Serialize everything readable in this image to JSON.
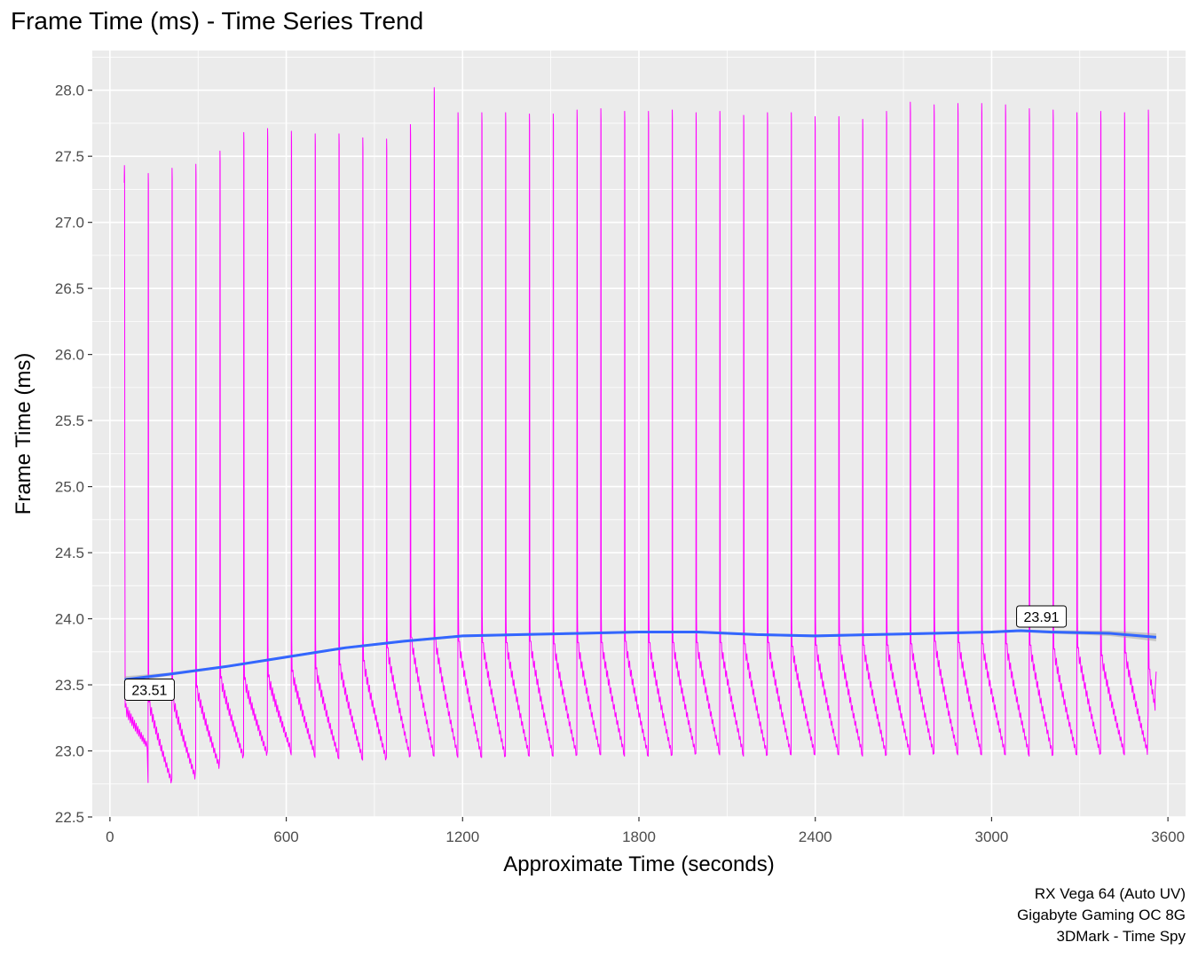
{
  "chart_data": {
    "type": "line",
    "title": "Frame Time (ms) - Time Series Trend",
    "xlabel": "Approximate Time (seconds)",
    "ylabel": "Frame Time (ms)",
    "xlim": [
      -60,
      3660
    ],
    "ylim": [
      22.5,
      28.3
    ],
    "x_ticks": [
      0,
      600,
      1200,
      1800,
      2400,
      3000,
      3600
    ],
    "x_tick_labels": [
      "0",
      "600",
      "1200",
      "1800",
      "2400",
      "3000",
      "3600"
    ],
    "y_ticks": [
      22.5,
      23.0,
      23.5,
      24.0,
      24.5,
      25.0,
      25.5,
      26.0,
      26.5,
      27.0,
      27.5,
      28.0
    ],
    "y_tick_labels": [
      "22.5",
      "23.0",
      "23.5",
      "24.0",
      "24.5",
      "25.0",
      "25.5",
      "26.0",
      "26.5",
      "27.0",
      "27.5",
      "28.0"
    ],
    "grid": true,
    "series": [
      {
        "color": "#ff00ff",
        "style": "thin line, periodic sawtooth with a tall spike at each cycle",
        "cycle_seconds": 81,
        "spike_times": [
          50,
          131,
          212,
          293,
          375,
          456,
          537,
          618,
          699,
          780,
          861,
          942,
          1023,
          1104,
          1185,
          1266,
          1347,
          1428,
          1509,
          1590,
          1671,
          1752,
          1833,
          1914,
          1995,
          2076,
          2157,
          2238,
          2319,
          2400,
          2481,
          2562,
          2643,
          2724,
          2805,
          2886,
          2967,
          3048,
          3129,
          3210,
          3291,
          3372,
          3453,
          3534
        ],
        "spike_peaks": [
          27.43,
          27.37,
          27.41,
          27.44,
          27.54,
          27.68,
          27.71,
          27.69,
          27.67,
          27.67,
          27.64,
          27.63,
          27.74,
          28.02,
          27.83,
          27.83,
          27.83,
          27.82,
          27.82,
          27.85,
          27.86,
          27.84,
          27.84,
          27.85,
          27.83,
          27.84,
          27.81,
          27.83,
          27.83,
          27.8,
          27.8,
          27.78,
          27.84,
          27.91,
          27.89,
          27.9,
          27.9,
          27.89,
          27.86,
          27.85,
          27.83,
          27.84,
          27.83,
          27.85
        ],
        "cycle_highs": [
          23.33,
          23.37,
          23.4,
          23.48,
          23.55,
          23.54,
          23.56,
          23.6,
          23.62,
          23.65,
          23.68,
          23.78,
          23.86,
          23.86,
          23.83,
          23.82,
          23.82,
          23.83,
          23.81,
          23.82,
          23.82,
          23.83,
          23.82,
          23.82,
          23.82,
          23.82,
          23.81,
          23.82,
          23.79,
          23.8,
          23.8,
          23.8,
          23.8,
          23.81,
          23.83,
          23.82,
          23.81,
          23.81,
          23.8,
          23.77,
          23.78,
          23.72,
          23.74,
          23.62
        ],
        "cycle_lows": [
          23.03,
          22.76,
          22.79,
          22.87,
          22.95,
          22.97,
          23.0,
          22.97,
          22.95,
          22.94,
          22.93,
          22.95,
          22.96,
          22.96,
          22.95,
          22.95,
          22.96,
          22.96,
          22.96,
          22.97,
          22.97,
          22.96,
          22.96,
          22.97,
          22.98,
          22.97,
          22.96,
          22.97,
          22.97,
          22.97,
          22.97,
          22.96,
          22.97,
          22.97,
          22.98,
          22.97,
          22.97,
          22.97,
          22.96,
          22.97,
          22.97,
          22.98,
          22.97,
          23.3
        ],
        "end_time": 3560,
        "end_value": 23.6
      },
      {
        "color": "#3366ff",
        "style": "smoothed trend line with grey confidence band",
        "x": [
          50,
          200,
          400,
          600,
          800,
          1000,
          1200,
          1400,
          1600,
          1800,
          1900,
          2000,
          2200,
          2400,
          2600,
          2800,
          3000,
          3100,
          3200,
          3400,
          3560
        ],
        "y": [
          23.54,
          23.58,
          23.64,
          23.71,
          23.78,
          23.83,
          23.87,
          23.88,
          23.89,
          23.9,
          23.9,
          23.9,
          23.88,
          23.87,
          23.88,
          23.89,
          23.9,
          23.91,
          23.9,
          23.89,
          23.86
        ],
        "band_halfwidth": [
          0.025,
          0.012,
          0.01,
          0.01,
          0.01,
          0.01,
          0.01,
          0.01,
          0.01,
          0.01,
          0.01,
          0.01,
          0.01,
          0.01,
          0.01,
          0.01,
          0.01,
          0.01,
          0.012,
          0.02,
          0.03
        ]
      }
    ],
    "annotations": [
      {
        "label": "23.51",
        "x": 50,
        "y": 23.51
      },
      {
        "label": "23.91",
        "x": 3085,
        "y": 23.91
      }
    ],
    "caption": [
      "RX Vega 64 (Auto UV)",
      "Gigabyte Gaming OC 8G",
      "3DMark - Time Spy"
    ]
  },
  "colors": {
    "panel_background": "#ebebeb",
    "grid_major": "#ffffff",
    "axis_text": "#4d4d4d",
    "title_text": "#000000",
    "frametime_line": "#ff00ff",
    "trend_line": "#3366ff",
    "confidence_band": "#999999"
  }
}
